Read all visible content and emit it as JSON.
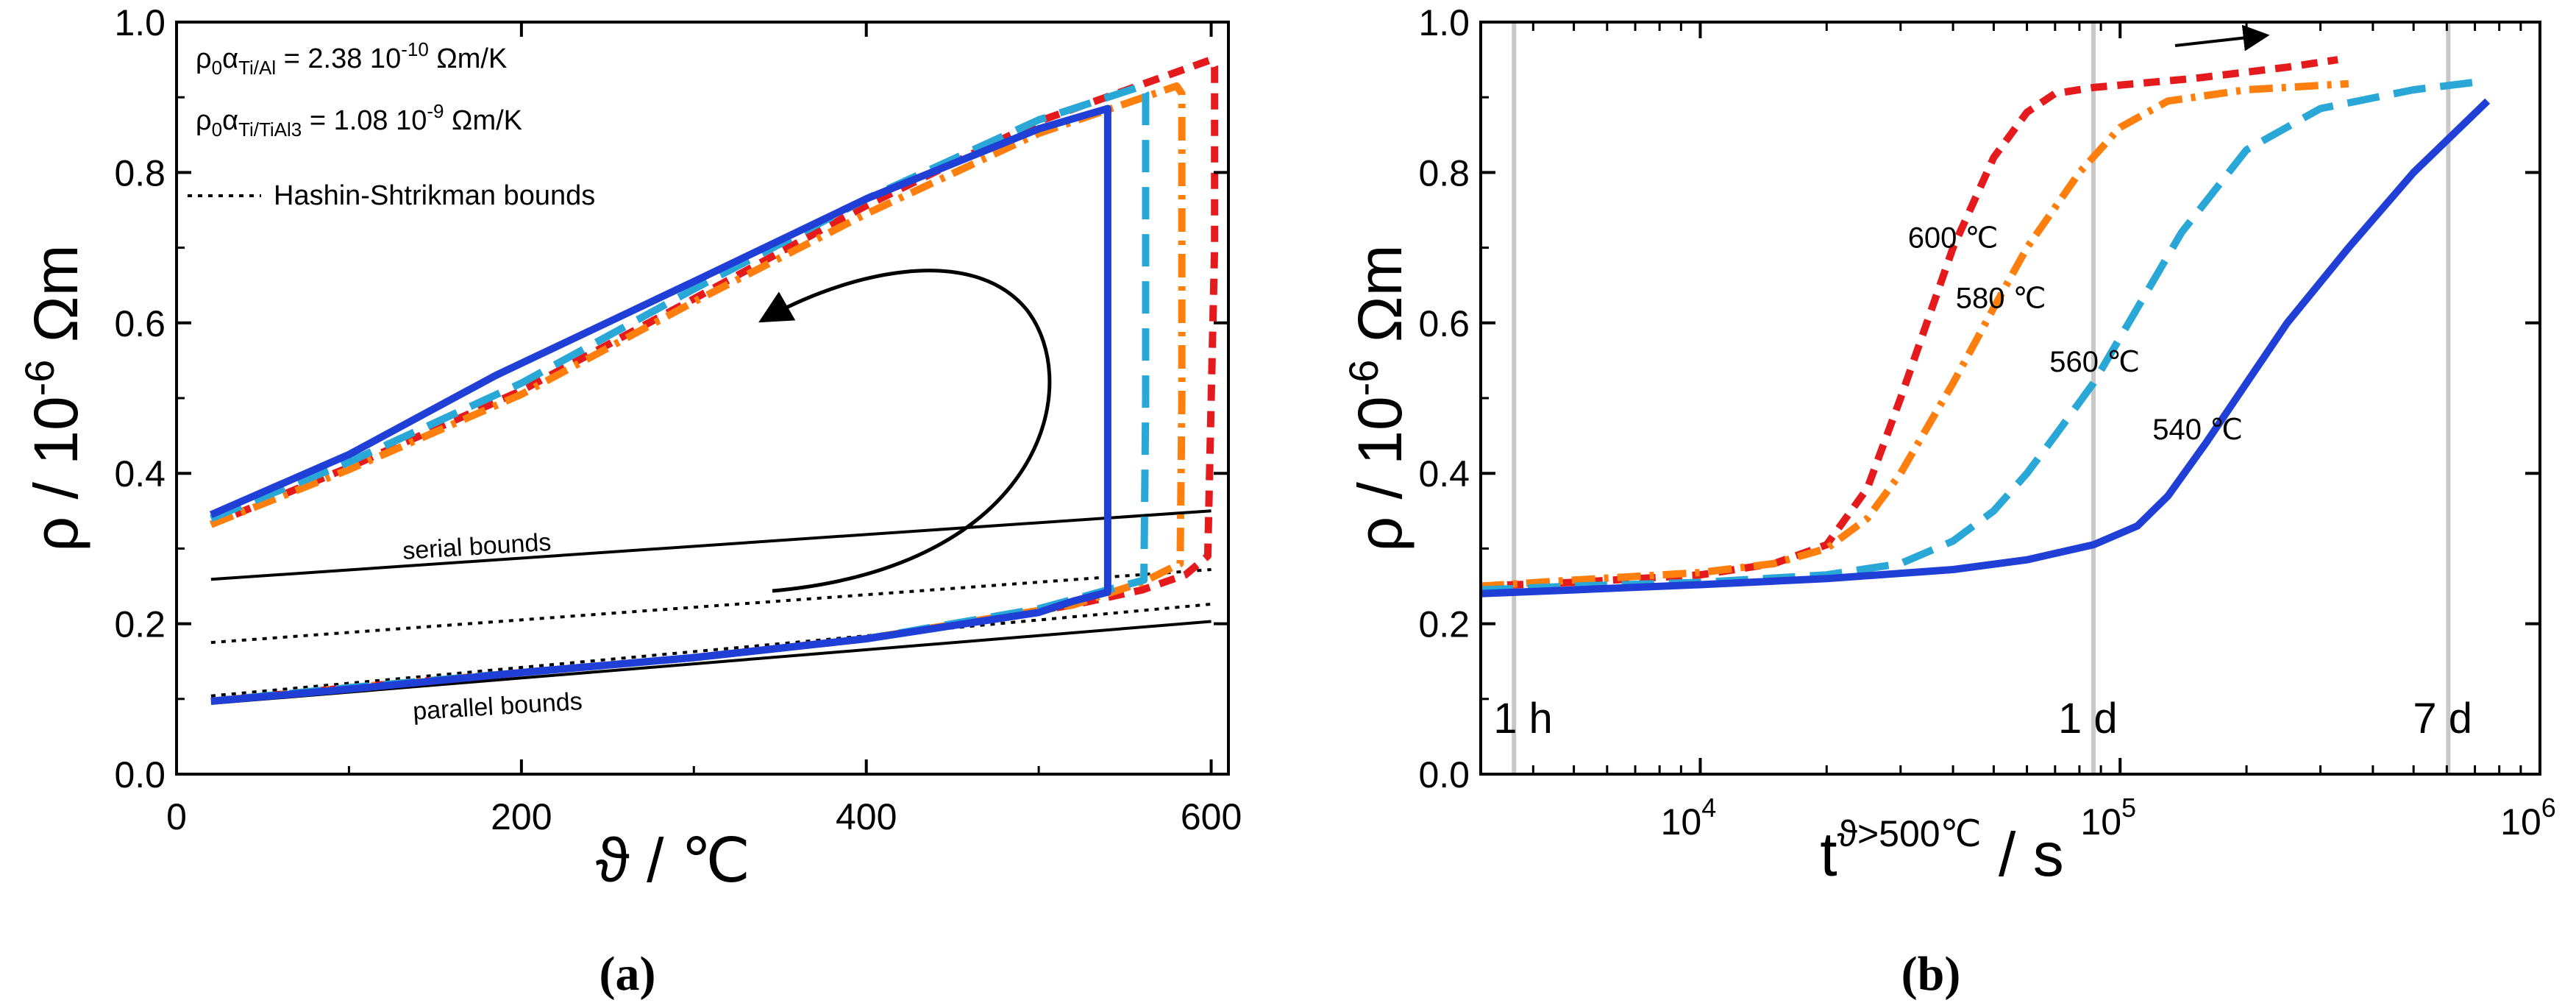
{
  "chart_data": [
    {
      "id": "a",
      "type": "line",
      "panel_label": "(a)",
      "xlabel": "ϑ / ℃",
      "ylabel": "ρ / 10^-6 Ωm",
      "ylabel_parts": {
        "base": "ρ / 10",
        "exp": "-6",
        "unit": " Ωm"
      },
      "xlim": [
        0,
        610
      ],
      "ylim": [
        0.0,
        1.0
      ],
      "x_ticks": [
        0,
        200,
        400,
        600
      ],
      "x_tick_labels": [
        "0",
        "200",
        "400",
        "600"
      ],
      "y_ticks": [
        0.0,
        0.2,
        0.4,
        0.6,
        0.8,
        1.0
      ],
      "y_tick_labels": [
        "0.0",
        "0.2",
        "0.4",
        "0.6",
        "0.8",
        "1.0"
      ],
      "annotations": [
        {
          "pre": "ρ",
          "sub1": "0",
          "mid": "α",
          "sub2": "Ti/Al",
          "post": " = 2.38 10",
          "exp": "-10",
          "unit": " Ωm/K"
        },
        {
          "pre": "ρ",
          "sub1": "0",
          "mid": "α",
          "sub2": "Ti/TiAl3",
          "post": " = 1.08 10",
          "exp": "-9",
          "unit": " Ωm/K"
        }
      ],
      "legend": [
        {
          "label": "Hashin-Shtrikman bounds",
          "style": "dotted"
        }
      ],
      "bound_labels": [
        "serial bounds",
        "parallel bounds"
      ],
      "bounds": [
        {
          "name": "serial-bound-upper",
          "style": "solid",
          "points": [
            [
              20,
              0.259
            ],
            [
              600,
              0.35
            ]
          ]
        },
        {
          "name": "parallel-bound-lower",
          "style": "solid",
          "points": [
            [
              20,
              0.094
            ],
            [
              600,
              0.203
            ]
          ]
        },
        {
          "name": "hs-bound-upper",
          "style": "dotted",
          "points": [
            [
              20,
              0.175
            ],
            [
              600,
              0.272
            ]
          ]
        },
        {
          "name": "hs-bound-lower",
          "style": "dotted",
          "points": [
            [
              20,
              0.104
            ],
            [
              600,
              0.226
            ]
          ]
        }
      ],
      "series": [
        {
          "name": "600 ℃",
          "color": "#e41a1c",
          "dash": "dash-short",
          "points": [
            [
              20,
              0.332
            ],
            [
              100,
              0.408
            ],
            [
              200,
              0.51
            ],
            [
              300,
              0.632
            ],
            [
              400,
              0.756
            ],
            [
              500,
              0.868
            ],
            [
              600,
              0.95
            ],
            [
              602,
              0.94
            ],
            [
              602,
              0.7
            ],
            [
              600,
              0.5
            ],
            [
              598,
              0.29
            ],
            [
              585,
              0.265
            ],
            [
              560,
              0.245
            ],
            [
              520,
              0.225
            ],
            [
              400,
              0.18
            ],
            [
              300,
              0.155
            ],
            [
              200,
              0.135
            ],
            [
              100,
              0.115
            ],
            [
              20,
              0.097
            ]
          ]
        },
        {
          "name": "580 ℃",
          "color": "#ff7f0e",
          "dash": "dash-dot",
          "points": [
            [
              20,
              0.332
            ],
            [
              100,
              0.405
            ],
            [
              200,
              0.505
            ],
            [
              300,
              0.628
            ],
            [
              400,
              0.745
            ],
            [
              500,
              0.852
            ],
            [
              580,
              0.915
            ],
            [
              583,
              0.905
            ],
            [
              583,
              0.5
            ],
            [
              582,
              0.28
            ],
            [
              560,
              0.255
            ],
            [
              520,
              0.225
            ],
            [
              400,
              0.18
            ],
            [
              300,
              0.155
            ],
            [
              200,
              0.135
            ],
            [
              100,
              0.115
            ],
            [
              20,
              0.097
            ]
          ]
        },
        {
          "name": "560 ℃",
          "color": "#29a8d8",
          "dash": "dash-long",
          "points": [
            [
              20,
              0.34
            ],
            [
              100,
              0.415
            ],
            [
              200,
              0.52
            ],
            [
              300,
              0.645
            ],
            [
              400,
              0.765
            ],
            [
              500,
              0.87
            ],
            [
              560,
              0.915
            ],
            [
              562,
              0.905
            ],
            [
              562,
              0.5
            ],
            [
              561,
              0.258
            ],
            [
              540,
              0.245
            ],
            [
              500,
              0.22
            ],
            [
              400,
              0.18
            ],
            [
              300,
              0.155
            ],
            [
              200,
              0.135
            ],
            [
              100,
              0.115
            ],
            [
              20,
              0.097
            ]
          ]
        },
        {
          "name": "540 ℃",
          "color": "#1f3fd6",
          "dash": "solid",
          "points": [
            [
              20,
              0.345
            ],
            [
              100,
              0.425
            ],
            [
              185,
              0.53
            ],
            [
              300,
              0.655
            ],
            [
              400,
              0.765
            ],
            [
              500,
              0.858
            ],
            [
              540,
              0.885
            ],
            [
              540,
              0.242
            ],
            [
              520,
              0.23
            ],
            [
              500,
              0.215
            ],
            [
              400,
              0.18
            ],
            [
              300,
              0.155
            ],
            [
              200,
              0.135
            ],
            [
              100,
              0.113
            ],
            [
              20,
              0.097
            ]
          ]
        }
      ]
    },
    {
      "id": "b",
      "type": "line",
      "panel_label": "(b)",
      "xscale": "log",
      "xlabel": "t^(ϑ>500℃) / s",
      "xlabel_parts": {
        "base": "t",
        "sup": "ϑ>500℃",
        "unit": " / s"
      },
      "ylabel": "ρ / 10^-6 Ωm",
      "ylabel_parts": {
        "base": "ρ / 10",
        "exp": "-6",
        "unit": " Ωm"
      },
      "xlim": [
        3000,
        1000000
      ],
      "ylim": [
        0.0,
        1.0
      ],
      "x_ticks": [
        10000,
        100000,
        1000000
      ],
      "x_tick_labels": [
        {
          "base": "10",
          "exp": "4"
        },
        {
          "base": "10",
          "exp": "5"
        },
        {
          "base": "10",
          "exp": "6"
        }
      ],
      "y_ticks": [
        0.0,
        0.2,
        0.4,
        0.6,
        0.8,
        1.0
      ],
      "y_tick_labels": [
        "0.0",
        "0.2",
        "0.4",
        "0.6",
        "0.8",
        "1.0"
      ],
      "time_markers": [
        {
          "label": "1 h",
          "x": 3600
        },
        {
          "label": "1 d",
          "x": 86400
        },
        {
          "label": "7 d",
          "x": 604800
        }
      ],
      "series_labels": [
        {
          "label": "600 ℃",
          "x": 40000,
          "y": 0.7
        },
        {
          "label": "580 ℃",
          "x": 52000,
          "y": 0.62
        },
        {
          "label": "560 ℃",
          "x": 87000,
          "y": 0.535
        },
        {
          "label": "540 ℃",
          "x": 153000,
          "y": 0.445
        }
      ],
      "series": [
        {
          "name": "600 ℃",
          "color": "#e41a1c",
          "dash": "dash-short",
          "x": [
            3000,
            5000,
            10000,
            15000,
            20000,
            25000,
            30000,
            40000,
            50000,
            60000,
            70000,
            86400,
            150000,
            250000,
            330000
          ],
          "y": [
            0.25,
            0.255,
            0.265,
            0.28,
            0.305,
            0.38,
            0.5,
            0.7,
            0.82,
            0.88,
            0.905,
            0.913,
            0.925,
            0.94,
            0.95
          ]
        },
        {
          "name": "580 ℃",
          "color": "#ff7f0e",
          "dash": "dash-dot",
          "x": [
            3000,
            5000,
            10000,
            15000,
            20000,
            25000,
            30000,
            40000,
            50000,
            60000,
            80000,
            100000,
            130000,
            200000,
            350000
          ],
          "y": [
            0.25,
            0.258,
            0.268,
            0.28,
            0.3,
            0.34,
            0.4,
            0.52,
            0.62,
            0.7,
            0.8,
            0.86,
            0.895,
            0.91,
            0.918
          ]
        },
        {
          "name": "560 ℃",
          "color": "#29a8d8",
          "dash": "dash-long",
          "x": [
            3000,
            5000,
            10000,
            20000,
            30000,
            40000,
            50000,
            60000,
            70000,
            86400,
            110000,
            140000,
            200000,
            300000,
            500000,
            700000
          ],
          "y": [
            0.245,
            0.25,
            0.255,
            0.265,
            0.28,
            0.31,
            0.35,
            0.4,
            0.45,
            0.52,
            0.62,
            0.72,
            0.83,
            0.885,
            0.91,
            0.92
          ]
        },
        {
          "name": "540 ℃",
          "color": "#1f3fd6",
          "dash": "solid",
          "x": [
            3000,
            5000,
            10000,
            20000,
            40000,
            60000,
            86400,
            110000,
            130000,
            160000,
            200000,
            250000,
            350000,
            500000,
            750000
          ],
          "y": [
            0.24,
            0.245,
            0.252,
            0.26,
            0.272,
            0.285,
            0.305,
            0.33,
            0.37,
            0.44,
            0.52,
            0.6,
            0.7,
            0.8,
            0.895
          ]
        }
      ]
    }
  ]
}
